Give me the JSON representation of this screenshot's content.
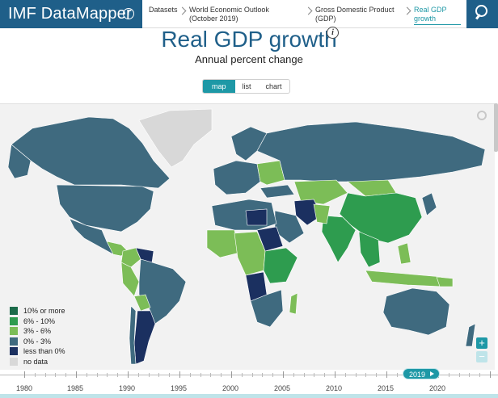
{
  "app": {
    "brand": "IMF DataMapper",
    "brand_icon": "info-icon"
  },
  "breadcrumbs": [
    {
      "label": "Datasets"
    },
    {
      "label": "World Economic Outlook (October 2019)"
    },
    {
      "label": "Gross Domestic Product (GDP)"
    },
    {
      "label": "Real GDP growth"
    }
  ],
  "search": {
    "icon": "search-icon"
  },
  "indicator": {
    "title": "Real GDP growth",
    "subtitle": "Annual percent change"
  },
  "view_tabs": [
    {
      "label": "map",
      "active": true
    },
    {
      "label": "list",
      "active": false
    },
    {
      "label": "chart",
      "active": false
    }
  ],
  "legend": [
    {
      "label": "10% or more",
      "color": "#1b6b4a"
    },
    {
      "label": "6% - 10%",
      "color": "#2e9c4f"
    },
    {
      "label": "3% - 6%",
      "color": "#7cbd57"
    },
    {
      "label": "0% - 3%",
      "color": "#3f6a7f"
    },
    {
      "label": "less than 0%",
      "color": "#1b3060"
    },
    {
      "label": "no data",
      "color": "#d8d8d8"
    }
  ],
  "zoom": {
    "in_label": "+",
    "out_label": "−"
  },
  "timeline": {
    "years": [
      "1980",
      "1985",
      "1990",
      "1995",
      "2000",
      "2005",
      "2010",
      "2015",
      "2020"
    ],
    "selected_year": "2019"
  },
  "colors": {
    "brand": "#1f5f89",
    "accent": "#1e98a6"
  }
}
